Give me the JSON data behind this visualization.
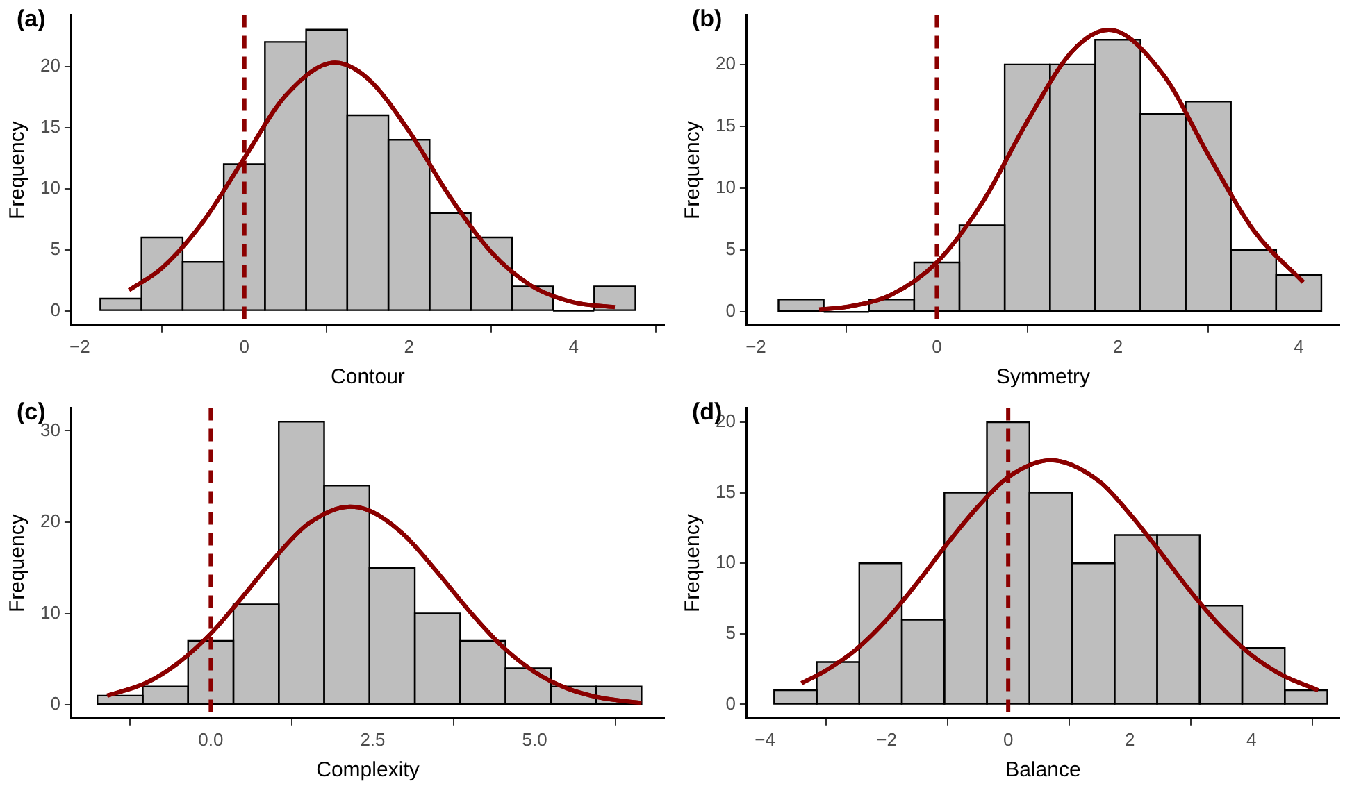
{
  "chart_data": [
    {
      "type": "histogram",
      "title": "(a)",
      "xlabel": "Contour",
      "ylabel": "Frequency",
      "bins": [
        -1.75,
        -1.25,
        -0.75,
        -0.25,
        0.25,
        0.75,
        1.25,
        1.75,
        2.25,
        2.75,
        3.25,
        3.75,
        4.25,
        4.75
      ],
      "series": [
        {
          "type": "histogram",
          "color": "#bebebe",
          "values": [
            1,
            6,
            4,
            12,
            22,
            23,
            16,
            14,
            8,
            6,
            2,
            0,
            2
          ]
        },
        {
          "type": "line",
          "color": "#8b0000",
          "x": [
            -1.4,
            -1,
            -0.5,
            0,
            0.5,
            1.1,
            1.5,
            2,
            2.5,
            3,
            3.5,
            4,
            4.5
          ],
          "values": [
            1.7,
            3.5,
            7.3,
            12.5,
            17.6,
            20.3,
            19,
            14.7,
            9.3,
            4.8,
            2,
            0.7,
            0.3
          ]
        }
      ],
      "xlim": [
        -2.1,
        5.1
      ],
      "xticks": [
        -2,
        0,
        2,
        4
      ],
      "ylim": [
        -1.2,
        24.2
      ],
      "yticks": [
        0,
        5,
        10,
        15,
        20
      ],
      "ref_lines": [
        {
          "axis": "x",
          "value": 0,
          "color": "#8b0000",
          "line_style": "dashed"
        }
      ],
      "grid": false,
      "legend": false
    },
    {
      "type": "histogram",
      "title": "(b)",
      "xlabel": "Symmetry",
      "ylabel": "Frequency",
      "bins": [
        -1.75,
        -1.25,
        -0.75,
        -0.25,
        0.25,
        0.75,
        1.25,
        1.75,
        2.25,
        2.75,
        3.25,
        3.75,
        4.25
      ],
      "series": [
        {
          "type": "histogram",
          "color": "#bebebe",
          "values": [
            1,
            0,
            1,
            4,
            7,
            20,
            20,
            22,
            16,
            17,
            5,
            3
          ]
        },
        {
          "type": "line",
          "color": "#8b0000",
          "x": [
            -1.3,
            -1,
            -0.5,
            0,
            0.5,
            1,
            1.5,
            1.9,
            2.5,
            3,
            3.5,
            4.05
          ],
          "values": [
            0.2,
            0.4,
            1.4,
            4,
            8.8,
            15.4,
            21.1,
            22.8,
            19.2,
            12.7,
            6.6,
            2.4
          ]
        }
      ],
      "xlim": [
        -2.1,
        4.45
      ],
      "xticks": [
        -2,
        0,
        2,
        4
      ],
      "ylim": [
        -1.1,
        24
      ],
      "yticks": [
        0,
        5,
        10,
        15,
        20
      ],
      "ref_lines": [
        {
          "axis": "x",
          "value": 0,
          "color": "#8b0000",
          "line_style": "dashed"
        }
      ],
      "grid": false,
      "legend": false
    },
    {
      "type": "histogram",
      "title": "(c)",
      "xlabel": "Complexity",
      "ylabel": "Frequency",
      "bins": [
        -1.75,
        -1.05,
        -0.35,
        0.35,
        1.05,
        1.75,
        2.45,
        3.15,
        3.85,
        4.55,
        5.25,
        5.95,
        6.65
      ],
      "series": [
        {
          "type": "histogram",
          "color": "#bebebe",
          "values": [
            1,
            2,
            7,
            11,
            31,
            24,
            15,
            10,
            7,
            4,
            2,
            2
          ]
        },
        {
          "type": "line",
          "color": "#8b0000",
          "x": [
            -1.6,
            -1,
            -0.5,
            0,
            0.5,
            1,
            1.5,
            2.15,
            2.5,
            3,
            3.5,
            4,
            4.5,
            5,
            5.5,
            6,
            6.65
          ],
          "values": [
            1,
            2.4,
            4.6,
            7.8,
            11.9,
            16.2,
            19.8,
            21.7,
            21.1,
            18.5,
            14.5,
            10.2,
            6.4,
            3.6,
            1.8,
            0.8,
            0.2
          ]
        }
      ],
      "xlim": [
        -2.15,
        7
      ],
      "xticks": [
        {
          "value": 0,
          "label": "0.0"
        },
        {
          "value": 2.5,
          "label": "2.5"
        },
        {
          "value": 5,
          "label": "5.0"
        }
      ],
      "ylim": [
        -1.5,
        32.5
      ],
      "yticks": [
        0,
        10,
        20,
        30
      ],
      "ref_lines": [
        {
          "axis": "x",
          "value": 0,
          "color": "#8b0000",
          "line_style": "dashed"
        }
      ],
      "grid": false,
      "legend": false
    },
    {
      "type": "histogram",
      "title": "(d)",
      "xlabel": "Balance",
      "ylabel": "Frequency",
      "bins": [
        -3.85,
        -3.15,
        -2.45,
        -1.75,
        -1.05,
        -0.35,
        0.35,
        1.05,
        1.75,
        2.45,
        3.15,
        3.85,
        4.55,
        5.25
      ],
      "series": [
        {
          "type": "histogram",
          "color": "#bebebe",
          "values": [
            1,
            3,
            10,
            6,
            15,
            20,
            15,
            10,
            12,
            12,
            7,
            4,
            1
          ]
        },
        {
          "type": "line",
          "color": "#8b0000",
          "x": [
            -3.4,
            -3,
            -2.5,
            -2,
            -1.5,
            -1,
            -0.5,
            0,
            0.7,
            1.5,
            2,
            2.5,
            3,
            3.5,
            4,
            4.5,
            5.1
          ],
          "values": [
            1.5,
            2.4,
            3.9,
            6,
            8.6,
            11.4,
            14,
            16.1,
            17.3,
            15.8,
            13.5,
            10.8,
            8,
            5.5,
            3.5,
            2.1,
            1
          ]
        }
      ],
      "xlim": [
        -4.3,
        5.45
      ],
      "xticks": [
        -4,
        -2,
        0,
        2,
        4
      ],
      "ylim": [
        -1,
        21
      ],
      "yticks": [
        0,
        5,
        10,
        15,
        20
      ],
      "ref_lines": [
        {
          "axis": "x",
          "value": 0,
          "color": "#8b0000",
          "line_style": "dashed"
        }
      ],
      "grid": false,
      "legend": false
    }
  ]
}
